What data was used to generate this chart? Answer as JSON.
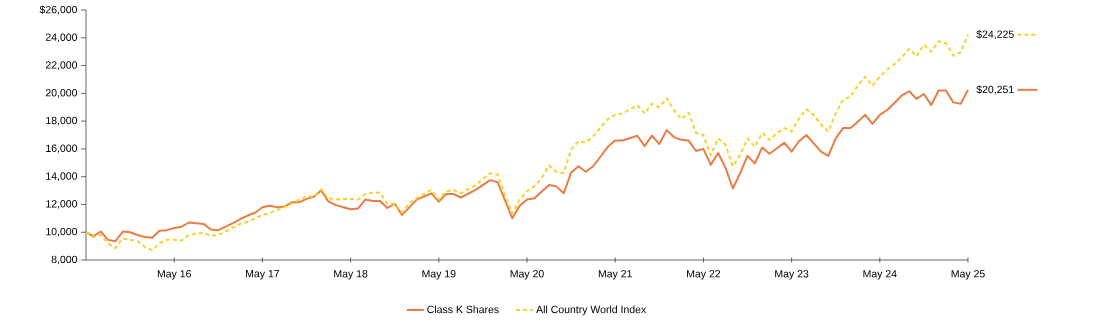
{
  "chart_data": {
    "type": "line",
    "xlim": [
      "2015-05",
      "2025-05"
    ],
    "ylim": [
      8000,
      26000
    ],
    "xticks": [
      {
        "value": "2016-05",
        "label": "May 16"
      },
      {
        "value": "2017-05",
        "label": "May 17"
      },
      {
        "value": "2018-05",
        "label": "May 18"
      },
      {
        "value": "2019-05",
        "label": "May 19"
      },
      {
        "value": "2020-05",
        "label": "May 20"
      },
      {
        "value": "2021-05",
        "label": "May 21"
      },
      {
        "value": "2022-05",
        "label": "May 22"
      },
      {
        "value": "2023-05",
        "label": "May 23"
      },
      {
        "value": "2024-05",
        "label": "May 24"
      },
      {
        "value": "2025-05",
        "label": "May 25"
      }
    ],
    "yticks": [
      {
        "value": 8000,
        "label": "8,000"
      },
      {
        "value": 10000,
        "label": "10,000"
      },
      {
        "value": 12000,
        "label": "12,000"
      },
      {
        "value": 14000,
        "label": "14,000"
      },
      {
        "value": 16000,
        "label": "16,000"
      },
      {
        "value": 18000,
        "label": "18,000"
      },
      {
        "value": 20000,
        "label": "20,000"
      },
      {
        "value": 22000,
        "label": "22,000"
      },
      {
        "value": 24000,
        "label": "24,000"
      },
      {
        "value": 26000,
        "label": "$26,000"
      }
    ],
    "legend": "bottom",
    "series": [
      {
        "name": "Class K Shares",
        "color": "#e97d45",
        "line_style": "solid",
        "x": [
          "2015-05",
          "2015-06",
          "2015-07",
          "2015-08",
          "2015-09",
          "2015-10",
          "2015-11",
          "2015-12",
          "2016-01",
          "2016-02",
          "2016-03",
          "2016-04",
          "2016-05",
          "2016-06",
          "2016-07",
          "2016-08",
          "2016-09",
          "2016-10",
          "2016-11",
          "2016-12",
          "2017-01",
          "2017-02",
          "2017-03",
          "2017-04",
          "2017-05",
          "2017-06",
          "2017-07",
          "2017-08",
          "2017-09",
          "2017-10",
          "2017-11",
          "2017-12",
          "2018-01",
          "2018-02",
          "2018-03",
          "2018-04",
          "2018-05",
          "2018-06",
          "2018-07",
          "2018-08",
          "2018-09",
          "2018-10",
          "2018-11",
          "2018-12",
          "2019-02",
          "2019-04",
          "2019-05",
          "2019-06",
          "2019-07",
          "2019-08",
          "2019-10",
          "2019-12",
          "2020-01",
          "2020-03",
          "2020-04",
          "2020-05",
          "2020-06",
          "2020-08",
          "2020-09",
          "2020-10",
          "2020-11",
          "2020-12",
          "2021-01",
          "2021-02",
          "2021-04",
          "2021-05",
          "2021-06",
          "2021-08",
          "2021-09",
          "2021-10",
          "2021-11",
          "2021-12",
          "2022-01",
          "2022-02",
          "2022-03",
          "2022-04",
          "2022-05",
          "2022-06",
          "2022-07",
          "2022-08",
          "2022-09",
          "2022-10",
          "2022-11",
          "2022-12",
          "2023-01",
          "2023-02",
          "2023-03",
          "2023-04",
          "2023-05",
          "2023-06",
          "2023-07",
          "2023-08",
          "2023-09",
          "2023-10",
          "2023-11",
          "2023-12",
          "2024-01",
          "2024-02",
          "2024-03",
          "2024-04",
          "2024-05",
          "2024-06",
          "2024-07",
          "2024-08",
          "2024-09",
          "2024-10",
          "2024-11",
          "2024-12",
          "2025-01",
          "2025-02",
          "2025-03",
          "2025-04",
          "2025-05"
        ],
        "values": [
          10000,
          9700,
          10050,
          9450,
          9350,
          10050,
          10000,
          9800,
          9650,
          9600,
          10100,
          10150,
          10300,
          10400,
          10700,
          10650,
          10600,
          10200,
          10150,
          10400,
          10650,
          10950,
          11200,
          11400,
          11800,
          11900,
          11800,
          11850,
          12150,
          12150,
          12400,
          12550,
          13000,
          12200,
          11950,
          11800,
          11650,
          11700,
          12350,
          12250,
          12250,
          11750,
          12050,
          11250,
          12350,
          12800,
          12200,
          12750,
          12750,
          12500,
          13050,
          13750,
          13600,
          11000,
          11900,
          12350,
          12450,
          13400,
          13300,
          12800,
          14300,
          14750,
          14350,
          14750,
          16150,
          16600,
          16600,
          16950,
          16200,
          16950,
          16350,
          17350,
          16850,
          16650,
          16600,
          15850,
          16000,
          14850,
          15700,
          14650,
          13150,
          14250,
          15500,
          14950,
          16100,
          15650,
          16050,
          16450,
          15800,
          16550,
          17000,
          16400,
          15800,
          15500,
          16750,
          17500,
          17500,
          17950,
          18450,
          17800,
          18450,
          18800,
          19300,
          19850,
          20150,
          19600,
          19950,
          19150,
          20200,
          20200,
          19350,
          19250,
          20251
        ],
        "value_labels": [
          null,
          null,
          null,
          null,
          null,
          null,
          null,
          null,
          null,
          null,
          null,
          null,
          null,
          null,
          null,
          null,
          null,
          null,
          null,
          null,
          null,
          null,
          null,
          null,
          null,
          null,
          null,
          null,
          null,
          null,
          null,
          null,
          null,
          null,
          null,
          null,
          null,
          null,
          null,
          null,
          null,
          null,
          null,
          null,
          null,
          null,
          null,
          null,
          null,
          null,
          null,
          null,
          null,
          null,
          null,
          null,
          null,
          null,
          null,
          null,
          null,
          null,
          null,
          null,
          null,
          null,
          null,
          null,
          null,
          null,
          null,
          null,
          null,
          null,
          null,
          null,
          null,
          null,
          null,
          null,
          null,
          null,
          null,
          null,
          null,
          null,
          null,
          null,
          null,
          null,
          null,
          null,
          null,
          null,
          null,
          null,
          null,
          null,
          null,
          null,
          null,
          null,
          null,
          null,
          null,
          null,
          null,
          null,
          null,
          null,
          null,
          null,
          "$20,251"
        ]
      },
      {
        "name": "All Country World Index",
        "color": "#f5d22e",
        "line_style": "dashed",
        "x": [
          "2015-05",
          "2015-06",
          "2015-07",
          "2015-08",
          "2015-09",
          "2015-10",
          "2015-11",
          "2015-12",
          "2016-01",
          "2016-02",
          "2016-03",
          "2016-04",
          "2016-05",
          "2016-06",
          "2016-07",
          "2016-08",
          "2016-09",
          "2016-10",
          "2016-11",
          "2016-12",
          "2017-01",
          "2017-02",
          "2017-03",
          "2017-04",
          "2017-05",
          "2017-06",
          "2017-07",
          "2017-08",
          "2017-09",
          "2017-10",
          "2017-11",
          "2017-12",
          "2018-01",
          "2018-02",
          "2018-03",
          "2018-04",
          "2018-05",
          "2018-06",
          "2018-07",
          "2018-08",
          "2018-09",
          "2018-10",
          "2018-11",
          "2018-12",
          "2019-01",
          "2019-02",
          "2019-04",
          "2019-05",
          "2019-06",
          "2019-07",
          "2019-08",
          "2019-10",
          "2019-12",
          "2020-01",
          "2020-02",
          "2020-03",
          "2020-04",
          "2020-05",
          "2020-06",
          "2020-07",
          "2020-08",
          "2020-09",
          "2020-10",
          "2020-11",
          "2020-12",
          "2021-01",
          "2021-02",
          "2021-04",
          "2021-05",
          "2021-06",
          "2021-08",
          "2021-09",
          "2021-10",
          "2021-11",
          "2021-12",
          "2022-01",
          "2022-02",
          "2022-03",
          "2022-04",
          "2022-05",
          "2022-06",
          "2022-07",
          "2022-08",
          "2022-09",
          "2022-10",
          "2022-11",
          "2022-12",
          "2023-01",
          "2023-02",
          "2023-03",
          "2023-04",
          "2023-05",
          "2023-06",
          "2023-07",
          "2023-08",
          "2023-09",
          "2023-10",
          "2023-11",
          "2023-12",
          "2024-01",
          "2024-02",
          "2024-03",
          "2024-04",
          "2024-05",
          "2024-06",
          "2024-07",
          "2024-08",
          "2024-09",
          "2024-10",
          "2024-11",
          "2024-12",
          "2025-01",
          "2025-02",
          "2025-03",
          "2025-04",
          "2025-05"
        ],
        "values": [
          10000,
          9650,
          9800,
          9200,
          8850,
          9550,
          9450,
          9350,
          8950,
          8700,
          9200,
          9450,
          9450,
          9400,
          9800,
          9900,
          9950,
          9750,
          9800,
          10050,
          10350,
          10600,
          10750,
          11000,
          11250,
          11400,
          11600,
          11800,
          12050,
          12350,
          12600,
          12550,
          13100,
          12450,
          12350,
          12400,
          12400,
          12350,
          12750,
          12850,
          12850,
          12050,
          12050,
          11400,
          12100,
          12450,
          13050,
          12350,
          12950,
          13050,
          12800,
          13400,
          14250,
          14150,
          12700,
          11350,
          12350,
          12950,
          13300,
          13900,
          14800,
          14350,
          14250,
          15950,
          16550,
          16450,
          16900,
          18150,
          18450,
          18550,
          19150,
          18550,
          19250,
          19000,
          19650,
          18800,
          18150,
          18600,
          17150,
          17000,
          15550,
          16750,
          16300,
          14750,
          15550,
          16750,
          16150,
          17150,
          16650,
          17150,
          17500,
          17250,
          18200,
          18850,
          18450,
          17750,
          17250,
          18550,
          19550,
          19750,
          20550,
          21200,
          20550,
          21200,
          21700,
          22100,
          22600,
          23200,
          22650,
          23500,
          23000,
          23750,
          23600,
          22700,
          22950,
          24225
        ],
        "value_labels": [
          null,
          null,
          null,
          null,
          null,
          null,
          null,
          null,
          null,
          null,
          null,
          null,
          null,
          null,
          null,
          null,
          null,
          null,
          null,
          null,
          null,
          null,
          null,
          null,
          null,
          null,
          null,
          null,
          null,
          null,
          null,
          null,
          null,
          null,
          null,
          null,
          null,
          null,
          null,
          null,
          null,
          null,
          null,
          null,
          null,
          null,
          null,
          null,
          null,
          null,
          null,
          null,
          null,
          null,
          null,
          null,
          null,
          null,
          null,
          null,
          null,
          null,
          null,
          null,
          null,
          null,
          null,
          null,
          null,
          null,
          null,
          null,
          null,
          null,
          null,
          null,
          null,
          null,
          null,
          null,
          null,
          null,
          null,
          null,
          null,
          null,
          null,
          null,
          null,
          null,
          null,
          null,
          null,
          null,
          null,
          null,
          null,
          null,
          null,
          null,
          null,
          null,
          null,
          null,
          null,
          null,
          null,
          null,
          null,
          null,
          null,
          null,
          null,
          null,
          null,
          "$24,225"
        ]
      }
    ]
  }
}
